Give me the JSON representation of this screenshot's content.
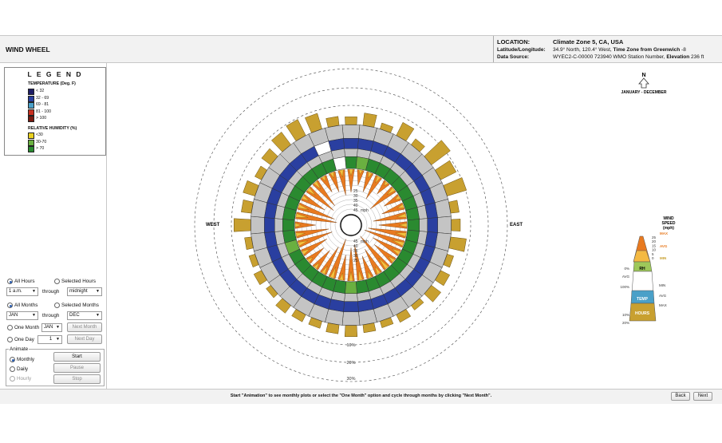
{
  "app_title": "WIND WHEEL",
  "location": {
    "location_label": "LOCATION:",
    "location_value": "Climate Zone 5, CA, USA",
    "latlon_label": "Latitude/Longitude:",
    "latlon_value": "34.9° North, 120.4° West, ",
    "timezone_label": "Time Zone from Greenwich",
    "timezone_value": " -8",
    "source_label": "Data Source:",
    "source_value": "WYEC2-C-00000    723940 WMO Station Number, ",
    "elevation_label": "Elevation",
    "elevation_value": " 236 ft"
  },
  "legend": {
    "title": "L E G E N D",
    "temperature_heading": "TEMPERATURE (Deg. F)",
    "temperature_items": [
      {
        "label": "< 32",
        "color": "#1c1c66"
      },
      {
        "label": "32 - 69",
        "color": "#2a3fa0"
      },
      {
        "label": "69 - 81",
        "color": "#4aa0c8"
      },
      {
        "label": "81 - 100",
        "color": "#c83020"
      },
      {
        "label": "> 100",
        "color": "#7a1a10"
      }
    ],
    "humidity_heading": "RELATIVE HUMIDITY (%)",
    "humidity_items": [
      {
        "label": "<30",
        "color": "#e8d020"
      },
      {
        "label": "30-70",
        "color": "#6ab040"
      },
      {
        "label": "> 70",
        "color": "#2a8a30"
      }
    ]
  },
  "controls": {
    "all_hours": "All Hours",
    "selected_hours": "Selected Hours",
    "hour_from": "1 a.m.",
    "through": "through",
    "hour_to": "midnight",
    "all_months": "All Months",
    "selected_months": "Selected Months",
    "month_from": "JAN",
    "month_to": "DEC",
    "one_month": "One Month",
    "one_month_value": "JAN",
    "next_month": "Next Month",
    "one_day": "One Day",
    "one_day_value": "1",
    "next_day": "Next Day",
    "animate_label": "Animate",
    "monthly": "Monthly",
    "daily": "Daily",
    "hourly": "Hourly",
    "start": "Start",
    "pause": "Pause",
    "stop": "Stop"
  },
  "compass": {
    "north": "N",
    "west": "WEST",
    "east": "EAST",
    "period": "JANUARY - DECEMBER"
  },
  "wheel": {
    "speed_labels": [
      "45",
      "40",
      "35",
      "30",
      "25"
    ],
    "speed_unit": "mph",
    "freq_labels": [
      "10%",
      "20%",
      "30%"
    ]
  },
  "wind_key": {
    "title_line1": "WIND",
    "title_line2": "SPEED",
    "title_line3": "(mph)",
    "scale": [
      "25",
      "20",
      "15",
      "10",
      "5",
      "0"
    ],
    "max": "MAX",
    "avg": "AVG",
    "min": "MIN",
    "rh": "RH",
    "temp": "TEMP",
    "hours": "HOURS",
    "left_labels": [
      "0%",
      "AVG",
      "100%",
      "10%",
      "20%"
    ],
    "right_labels": [
      "MIN",
      "AVG",
      "MAX"
    ]
  },
  "footer": {
    "hint": "Start \"Animation\" to see monthly plots or select the \"One Month\" option and cycle through months by clicking \"Next Month\".",
    "back": "Back",
    "next": "Next"
  },
  "chart_data": {
    "type": "radial",
    "directions": 36,
    "wind_speed_mph": [
      9,
      6,
      8,
      10,
      6,
      12,
      7,
      9,
      13,
      11,
      15,
      17,
      12,
      10,
      18,
      11,
      9,
      14,
      13,
      10,
      16,
      12,
      9,
      8,
      11,
      14,
      13,
      8,
      17,
      15,
      10,
      13,
      12,
      7,
      8,
      10
    ],
    "hours_frequency": [
      1.4,
      2.2,
      1.1,
      2.6,
      1.3,
      4.2,
      3.1,
      3.6,
      1.5,
      1.6,
      2.8,
      1.2,
      1.8,
      2.1,
      1.0,
      1.5,
      1.2,
      1.4,
      2.0,
      1.6,
      1.3,
      1.4,
      1.7,
      1.0,
      1.5,
      1.1,
      1.2,
      3.0,
      1.8,
      2.2,
      1.3,
      2.0,
      2.8,
      3.2,
      2.9,
      1.6
    ],
    "humidity_ring_colors": [
      "#2a8a30",
      "#6ab040",
      "#2a8a30",
      "#2a8a30",
      "#2a8a30",
      "#2a8a30",
      "#2a8a30",
      "#2a8a30",
      "#2a8a30",
      "#2a8a30",
      "#2a8a30",
      "#2a8a30",
      "#2a8a30",
      "#2a8a30",
      "#2a8a30",
      "#2a8a30",
      "#2a8a30",
      "#2a8a30",
      "#6ab040",
      "#2a8a30",
      "#2a8a30",
      "#2a8a30",
      "#2a8a30",
      "#2a8a30",
      "#2a8a30",
      "#6ab040",
      "#2a8a30",
      "#2a8a30",
      "#2a8a30",
      "#2a8a30",
      "#2a8a30",
      "#2a8a30",
      "#2a8a30",
      "#2a8a30",
      "#2a8a30",
      "#ffffff"
    ],
    "temperature_ring_colors": [
      "#2a3fa0",
      "#2a3fa0",
      "#2a3fa0",
      "#2a3fa0",
      "#2a3fa0",
      "#2a3fa0",
      "#2a3fa0",
      "#2a3fa0",
      "#2a3fa0",
      "#2a3fa0",
      "#2a3fa0",
      "#2a3fa0",
      "#2a3fa0",
      "#2a3fa0",
      "#2a3fa0",
      "#2a3fa0",
      "#2a3fa0",
      "#2a3fa0",
      "#2a3fa0",
      "#2a3fa0",
      "#2a3fa0",
      "#2a3fa0",
      "#2a3fa0",
      "#2a3fa0",
      "#2a3fa0",
      "#2a3fa0",
      "#2a3fa0",
      "#2a3fa0",
      "#2a3fa0",
      "#2a3fa0",
      "#2a3fa0",
      "#2a3fa0",
      "#2a3fa0",
      "#2a3fa0",
      "#ffffff",
      "#2a3fa0"
    ]
  }
}
